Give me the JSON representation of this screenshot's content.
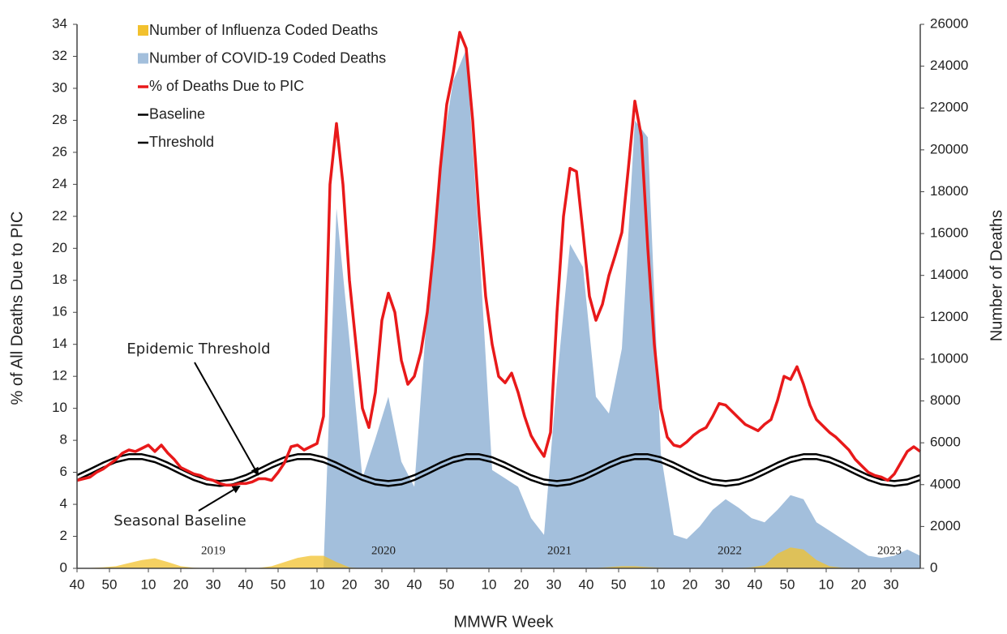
{
  "chart_data": {
    "type": "line",
    "ylabel": "% of All Deaths Due to PIC",
    "y2label": "Number of Deaths",
    "xlabel": "MMWR Week",
    "legend": "upper left",
    "grid": false,
    "xlim": [
      0,
      260
    ],
    "ylim": [
      0,
      34
    ],
    "y2lim": [
      0,
      26000
    ],
    "yticks": [
      0,
      2,
      4,
      6,
      8,
      10,
      12,
      14,
      16,
      18,
      20,
      22,
      24,
      26,
      28,
      30,
      32,
      34
    ],
    "y2ticks": [
      0,
      2000,
      4000,
      6000,
      8000,
      10000,
      12000,
      14000,
      16000,
      18000,
      20000,
      22000,
      24000,
      26000
    ],
    "xticks": [
      {
        "value": 0,
        "label": "40"
      },
      {
        "value": 10,
        "label": "50"
      },
      {
        "value": 22,
        "label": "10"
      },
      {
        "value": 32,
        "label": "20"
      },
      {
        "value": 42,
        "label": "30"
      },
      {
        "value": 52,
        "label": "40"
      },
      {
        "value": 62,
        "label": "50"
      },
      {
        "value": 74,
        "label": "10"
      },
      {
        "value": 84,
        "label": "20"
      },
      {
        "value": 94,
        "label": "30"
      },
      {
        "value": 104,
        "label": "40"
      },
      {
        "value": 114,
        "label": "50"
      },
      {
        "value": 127,
        "label": "10"
      },
      {
        "value": 137,
        "label": "20"
      },
      {
        "value": 147,
        "label": "30"
      },
      {
        "value": 157,
        "label": "40"
      },
      {
        "value": 167,
        "label": "50"
      },
      {
        "value": 179,
        "label": "10"
      },
      {
        "value": 189,
        "label": "20"
      },
      {
        "value": 199,
        "label": "30"
      },
      {
        "value": 209,
        "label": "40"
      },
      {
        "value": 219,
        "label": "50"
      },
      {
        "value": 231,
        "label": "10"
      },
      {
        "value": 241,
        "label": "20"
      },
      {
        "value": 251,
        "label": "30"
      }
    ],
    "year_labels": [
      "2019",
      "2020",
      "2021",
      "2022",
      "2023"
    ],
    "annotations": [
      "Epidemic Threshold",
      "Seasonal Baseline"
    ],
    "series": [
      {
        "name": "Number of Influenza Coded Deaths",
        "color": "#f2c12e",
        "style": "area",
        "axis": "y2",
        "x": [
          0,
          4,
          8,
          12,
          16,
          20,
          24,
          28,
          32,
          36,
          40,
          44,
          48,
          52,
          56,
          60,
          64,
          68,
          72,
          76,
          80,
          84,
          88,
          92,
          96,
          100,
          104,
          108,
          112,
          116,
          120,
          124,
          128,
          132,
          136,
          140,
          144,
          148,
          152,
          156,
          160,
          164,
          168,
          172,
          176,
          180,
          184,
          188,
          192,
          196,
          200,
          204,
          208,
          212,
          216,
          220,
          224,
          228,
          232,
          236,
          240,
          244,
          248,
          252,
          256,
          260
        ],
        "values": [
          0,
          20,
          50,
          100,
          250,
          400,
          480,
          300,
          100,
          30,
          10,
          0,
          0,
          0,
          20,
          100,
          300,
          500,
          600,
          600,
          300,
          50,
          0,
          0,
          0,
          0,
          0,
          0,
          0,
          0,
          0,
          0,
          0,
          0,
          0,
          0,
          0,
          0,
          0,
          0,
          20,
          60,
          100,
          100,
          60,
          30,
          10,
          10,
          10,
          10,
          10,
          10,
          50,
          150,
          700,
          1000,
          900,
          400,
          100,
          30,
          10,
          10,
          10,
          10,
          10,
          10
        ]
      },
      {
        "name": "Number of COVID-19 Coded Deaths",
        "color": "#a3bfdc",
        "style": "area",
        "axis": "y2",
        "x": [
          76,
          80,
          84,
          88,
          92,
          96,
          100,
          104,
          108,
          112,
          116,
          120,
          124,
          128,
          132,
          136,
          140,
          144,
          148,
          152,
          156,
          160,
          164,
          168,
          172,
          176,
          180,
          184,
          188,
          192,
          196,
          200,
          204,
          208,
          212,
          216,
          220,
          224,
          228,
          232,
          236,
          240,
          244,
          248,
          252,
          256,
          260
        ],
        "values": [
          0,
          17200,
          10900,
          4300,
          6200,
          8200,
          5100,
          3900,
          12400,
          19400,
          23300,
          24800,
          15500,
          4700,
          4300,
          3900,
          2400,
          1600,
          9000,
          15500,
          14400,
          8200,
          7400,
          10500,
          21400,
          20600,
          5500,
          1600,
          1400,
          2000,
          2800,
          3300,
          2900,
          2400,
          2200,
          2800,
          3500,
          3300,
          2200,
          1800,
          1400,
          1000,
          600,
          500,
          600,
          900,
          600
        ]
      },
      {
        "name": "% of Deaths Due to PIC",
        "color": "#e8191a",
        "style": "line",
        "x": [
          0,
          2,
          4,
          6,
          8,
          10,
          12,
          14,
          16,
          18,
          20,
          22,
          24,
          26,
          28,
          30,
          32,
          34,
          36,
          38,
          40,
          42,
          44,
          46,
          48,
          50,
          52,
          54,
          56,
          58,
          60,
          62,
          64,
          66,
          68,
          70,
          72,
          74,
          76,
          78,
          80,
          82,
          84,
          86,
          88,
          90,
          92,
          94,
          96,
          98,
          100,
          102,
          104,
          106,
          108,
          110,
          112,
          114,
          116,
          118,
          120,
          122,
          124,
          126,
          128,
          130,
          132,
          134,
          136,
          138,
          140,
          142,
          144,
          146,
          148,
          150,
          152,
          154,
          156,
          158,
          160,
          162,
          164,
          166,
          168,
          170,
          172,
          174,
          176,
          178,
          180,
          182,
          184,
          186,
          188,
          190,
          192,
          194,
          196,
          198,
          200,
          202,
          204,
          206,
          208,
          210,
          212,
          214,
          216,
          218,
          220,
          222,
          224,
          226,
          228,
          230,
          232,
          234,
          236,
          238,
          240,
          242,
          244,
          246,
          248,
          250,
          252,
          254,
          256,
          258,
          260
        ],
        "values": [
          5.5,
          5.6,
          5.7,
          6.0,
          6.2,
          6.5,
          6.8,
          7.2,
          7.4,
          7.3,
          7.5,
          7.7,
          7.3,
          7.7,
          7.2,
          6.8,
          6.3,
          6.1,
          5.9,
          5.8,
          5.6,
          5.5,
          5.3,
          5.2,
          5.2,
          5.3,
          5.3,
          5.4,
          5.6,
          5.6,
          5.5,
          6.0,
          6.6,
          7.6,
          7.7,
          7.4,
          7.6,
          7.8,
          9.5,
          24,
          27.8,
          24,
          18,
          14,
          10,
          8.8,
          11,
          15.5,
          17.2,
          16,
          13,
          11.5,
          12,
          13.5,
          16,
          20,
          25,
          29,
          31,
          33.5,
          32.5,
          28,
          22,
          17,
          14,
          12,
          11.6,
          12.2,
          11,
          9.5,
          8.3,
          7.6,
          7.0,
          8.5,
          16,
          22,
          25,
          24.8,
          21,
          17,
          15.5,
          16.5,
          18.3,
          19.6,
          21,
          25,
          29.2,
          27,
          20,
          14,
          10,
          8.2,
          7.7,
          7.6,
          7.9,
          8.3,
          8.6,
          8.8,
          9.5,
          10.3,
          10.2,
          9.8,
          9.4,
          9.0,
          8.8,
          8.6,
          9.0,
          9.3,
          10.5,
          12,
          11.8,
          12.6,
          11.5,
          10.2,
          9.3,
          8.9,
          8.5,
          8.2,
          7.8,
          7.4,
          6.8,
          6.4,
          6.0,
          5.8,
          5.7,
          5.5,
          5.9,
          6.6,
          7.3,
          7.6,
          7.3
        ]
      },
      {
        "name": "Baseline",
        "color": "#000000",
        "style": "line",
        "x": [
          0,
          4,
          8,
          12,
          16,
          20,
          24,
          28,
          32,
          36,
          40,
          44,
          48,
          52,
          56,
          60,
          64,
          68,
          72,
          76,
          80,
          84,
          88,
          92,
          96,
          100,
          104,
          108,
          112,
          116,
          120,
          124,
          128,
          132,
          136,
          140,
          144,
          148,
          152,
          156,
          160,
          164,
          168,
          172,
          176,
          180,
          184,
          188,
          192,
          196,
          200,
          204,
          208,
          212,
          216,
          220,
          224,
          228,
          232,
          236,
          240,
          244,
          248,
          252,
          256,
          260
        ],
        "values": [
          5.52,
          5.9,
          6.3,
          6.64,
          6.83,
          6.83,
          6.64,
          6.3,
          5.9,
          5.52,
          5.25,
          5.15,
          5.25,
          5.52,
          5.9,
          6.3,
          6.64,
          6.83,
          6.83,
          6.64,
          6.3,
          5.9,
          5.52,
          5.25,
          5.15,
          5.25,
          5.52,
          5.9,
          6.3,
          6.64,
          6.83,
          6.83,
          6.64,
          6.3,
          5.9,
          5.52,
          5.25,
          5.15,
          5.25,
          5.52,
          5.9,
          6.3,
          6.64,
          6.83,
          6.83,
          6.64,
          6.3,
          5.9,
          5.52,
          5.25,
          5.15,
          5.25,
          5.52,
          5.9,
          6.3,
          6.64,
          6.83,
          6.83,
          6.64,
          6.3,
          5.9,
          5.52,
          5.25,
          5.15,
          5.25,
          5.52
        ]
      },
      {
        "name": "Threshold",
        "color": "#000000",
        "style": "line",
        "x": [
          0,
          4,
          8,
          12,
          16,
          20,
          24,
          28,
          32,
          36,
          40,
          44,
          48,
          52,
          56,
          60,
          64,
          68,
          72,
          76,
          80,
          84,
          88,
          92,
          96,
          100,
          104,
          108,
          112,
          116,
          120,
          124,
          128,
          132,
          136,
          140,
          144,
          148,
          152,
          156,
          160,
          164,
          168,
          172,
          176,
          180,
          184,
          188,
          192,
          196,
          200,
          204,
          208,
          212,
          216,
          220,
          224,
          228,
          232,
          236,
          240,
          244,
          248,
          252,
          256,
          260
        ],
        "values": [
          5.82,
          6.2,
          6.6,
          6.94,
          7.13,
          7.13,
          6.94,
          6.6,
          6.2,
          5.82,
          5.55,
          5.45,
          5.55,
          5.82,
          6.2,
          6.6,
          6.94,
          7.13,
          7.13,
          6.94,
          6.6,
          6.2,
          5.82,
          5.55,
          5.45,
          5.55,
          5.82,
          6.2,
          6.6,
          6.94,
          7.13,
          7.13,
          6.94,
          6.6,
          6.2,
          5.82,
          5.55,
          5.45,
          5.55,
          5.82,
          6.2,
          6.6,
          6.94,
          7.13,
          7.13,
          6.94,
          6.6,
          6.2,
          5.82,
          5.55,
          5.45,
          5.55,
          5.82,
          6.2,
          6.6,
          6.94,
          7.13,
          7.13,
          6.94,
          6.6,
          6.2,
          5.82,
          5.55,
          5.45,
          5.55,
          5.82
        ]
      }
    ]
  }
}
